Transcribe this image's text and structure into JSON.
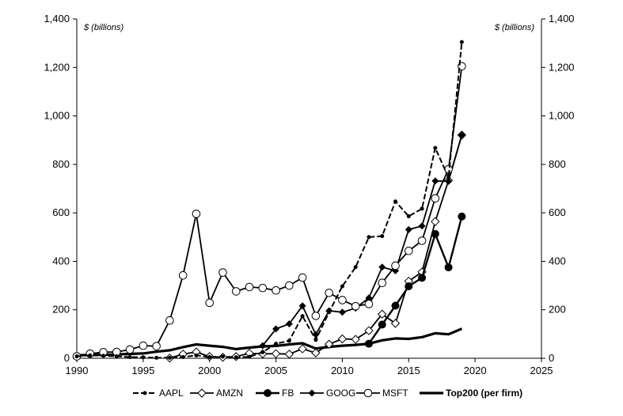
{
  "chart_data": {
    "type": "line",
    "unit_left": "$ (billions)",
    "unit_right": "$ (billions)",
    "xlim": [
      1990,
      2025
    ],
    "ylim": [
      0,
      1400
    ],
    "x_ticks": [
      1990,
      1995,
      2000,
      2005,
      2010,
      2015,
      2020,
      2025
    ],
    "y_ticks": [
      0,
      200,
      400,
      600,
      800,
      1000,
      1200,
      1400
    ],
    "y_tick_labels": [
      "0",
      "200",
      "400",
      "600",
      "800",
      "1,000",
      "1,200",
      "1,400"
    ],
    "legend_position": "bottom",
    "grid": false,
    "series": [
      {
        "name": "AAPL",
        "marker": "small-dot",
        "line": "dashed",
        "color": "#000000",
        "points": [
          [
            1990,
            8
          ],
          [
            1991,
            12
          ],
          [
            1992,
            10
          ],
          [
            1993,
            8
          ],
          [
            1994,
            5
          ],
          [
            1995,
            4
          ],
          [
            1996,
            2
          ],
          [
            1997,
            2
          ],
          [
            1998,
            5
          ],
          [
            1999,
            12
          ],
          [
            2000,
            5
          ],
          [
            2001,
            7
          ],
          [
            2002,
            4
          ],
          [
            2003,
            6
          ],
          [
            2004,
            25
          ],
          [
            2005,
            60
          ],
          [
            2006,
            72
          ],
          [
            2007,
            174
          ],
          [
            2008,
            76
          ],
          [
            2009,
            190
          ],
          [
            2010,
            297
          ],
          [
            2011,
            376
          ],
          [
            2012,
            500
          ],
          [
            2013,
            504
          ],
          [
            2014,
            647
          ],
          [
            2015,
            586
          ],
          [
            2016,
            617
          ],
          [
            2017,
            868
          ],
          [
            2018,
            746
          ],
          [
            2019,
            1305
          ]
        ]
      },
      {
        "name": "AMZN",
        "marker": "open-diamond",
        "line": "solid",
        "color": "#000000",
        "points": [
          [
            1997,
            1
          ],
          [
            1998,
            17
          ],
          [
            1999,
            26
          ],
          [
            2000,
            7
          ],
          [
            2001,
            4
          ],
          [
            2002,
            7
          ],
          [
            2003,
            21
          ],
          [
            2004,
            18
          ],
          [
            2005,
            19
          ],
          [
            2006,
            17
          ],
          [
            2007,
            39
          ],
          [
            2008,
            22
          ],
          [
            2009,
            58
          ],
          [
            2010,
            80
          ],
          [
            2011,
            78
          ],
          [
            2012,
            114
          ],
          [
            2013,
            182
          ],
          [
            2014,
            144
          ],
          [
            2015,
            318
          ],
          [
            2016,
            356
          ],
          [
            2017,
            564
          ],
          [
            2018,
            734
          ],
          [
            2019,
            921
          ]
        ]
      },
      {
        "name": "FB",
        "marker": "filled-circle",
        "line": "solid-thick",
        "color": "#000000",
        "points": [
          [
            2012,
            60
          ],
          [
            2013,
            139
          ],
          [
            2014,
            217
          ],
          [
            2015,
            297
          ],
          [
            2016,
            332
          ],
          [
            2017,
            513
          ],
          [
            2018,
            375
          ],
          [
            2019,
            585
          ]
        ]
      },
      {
        "name": "GOOG",
        "marker": "filled-diamond",
        "line": "solid",
        "color": "#000000",
        "points": [
          [
            2004,
            52
          ],
          [
            2005,
            121
          ],
          [
            2006,
            142
          ],
          [
            2007,
            216
          ],
          [
            2008,
            98
          ],
          [
            2009,
            196
          ],
          [
            2010,
            190
          ],
          [
            2011,
            207
          ],
          [
            2012,
            249
          ],
          [
            2013,
            376
          ],
          [
            2014,
            361
          ],
          [
            2015,
            531
          ],
          [
            2016,
            546
          ],
          [
            2017,
            732
          ],
          [
            2018,
            730
          ],
          [
            2019,
            922
          ]
        ]
      },
      {
        "name": "MSFT",
        "marker": "open-circle",
        "line": "solid",
        "color": "#000000",
        "points": [
          [
            1990,
            8
          ],
          [
            1991,
            19
          ],
          [
            1992,
            25
          ],
          [
            1993,
            26
          ],
          [
            1994,
            36
          ],
          [
            1995,
            52
          ],
          [
            1996,
            50
          ],
          [
            1997,
            156
          ],
          [
            1998,
            342
          ],
          [
            1999,
            596
          ],
          [
            2000,
            229
          ],
          [
            2001,
            354
          ],
          [
            2002,
            276
          ],
          [
            2003,
            294
          ],
          [
            2004,
            290
          ],
          [
            2005,
            280
          ],
          [
            2006,
            300
          ],
          [
            2007,
            333
          ],
          [
            2008,
            175
          ],
          [
            2009,
            270
          ],
          [
            2010,
            240
          ],
          [
            2011,
            215
          ],
          [
            2012,
            224
          ],
          [
            2013,
            311
          ],
          [
            2014,
            382
          ],
          [
            2015,
            443
          ],
          [
            2016,
            485
          ],
          [
            2017,
            660
          ],
          [
            2018,
            780
          ],
          [
            2019,
            1205
          ]
        ]
      },
      {
        "name": "Top200 (per firm)",
        "marker": "none",
        "line": "solid-bold",
        "color": "#000000",
        "points": [
          [
            1990,
            12
          ],
          [
            1991,
            14
          ],
          [
            1992,
            14
          ],
          [
            1993,
            16
          ],
          [
            1994,
            18
          ],
          [
            1995,
            20
          ],
          [
            1996,
            27
          ],
          [
            1997,
            33
          ],
          [
            1998,
            46
          ],
          [
            1999,
            57
          ],
          [
            2000,
            52
          ],
          [
            2001,
            47
          ],
          [
            2002,
            38
          ],
          [
            2003,
            44
          ],
          [
            2004,
            49
          ],
          [
            2005,
            51
          ],
          [
            2006,
            57
          ],
          [
            2007,
            62
          ],
          [
            2008,
            40
          ],
          [
            2009,
            47
          ],
          [
            2010,
            52
          ],
          [
            2011,
            55
          ],
          [
            2012,
            60
          ],
          [
            2013,
            74
          ],
          [
            2014,
            82
          ],
          [
            2015,
            80
          ],
          [
            2016,
            87
          ],
          [
            2017,
            103
          ],
          [
            2018,
            99
          ],
          [
            2019,
            122
          ]
        ]
      }
    ]
  }
}
